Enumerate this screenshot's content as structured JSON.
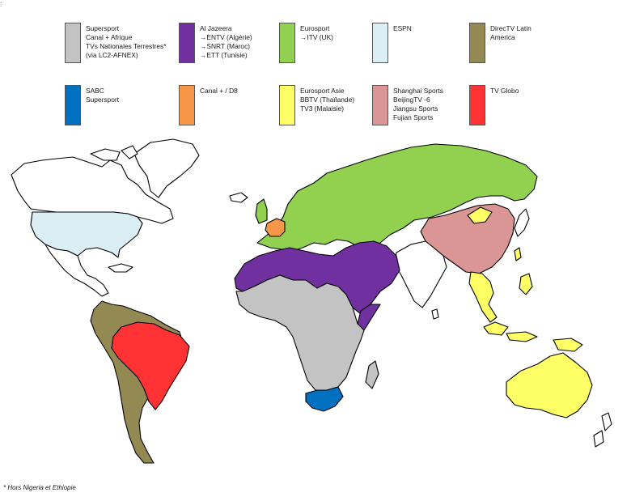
{
  "corner_mark": ":",
  "legend": [
    {
      "id": "supersport-africa",
      "color": "#c3c3c3",
      "lines": [
        "Supersport",
        "Canal + Afrique",
        "TVs Nationales Terrestres*",
        "(via LC2-AFNEX)"
      ]
    },
    {
      "id": "al-jazeera",
      "color": "#7030a0",
      "lines": [
        "Al Jazeera",
        "→ENTV (Algérie)",
        "→SNRT (Maroc)",
        "→ETT (Tunisie)"
      ]
    },
    {
      "id": "eurosport",
      "color": "#92d050",
      "lines": [
        "Eurosport",
        "→ITV (UK)"
      ]
    },
    {
      "id": "espn",
      "color": "#daeef3",
      "lines": [
        "ESPN"
      ]
    },
    {
      "id": "directv-latin",
      "color": "#938953",
      "lines": [
        "DirecTV Latin",
        "America"
      ]
    },
    {
      "id": "sabc",
      "color": "#0070c0",
      "lines": [
        "SABC",
        "Supersport"
      ]
    },
    {
      "id": "canal-d8",
      "color": "#f79646",
      "lines": [
        "Canal + / D8"
      ]
    },
    {
      "id": "eurosport-asie",
      "color": "#ffff66",
      "lines": [
        "Eurosport Asie",
        "BBTV (Thaïlande)",
        "TV3 (Malaisie)"
      ]
    },
    {
      "id": "chinese-sports",
      "color": "#d99694",
      "lines": [
        "Shanghai Sports",
        "BeijingTV -6",
        "Jiangsu Sports",
        "Fujian Sports"
      ]
    },
    {
      "id": "tv-globo",
      "color": "#ff3333",
      "lines": [
        "TV Globo"
      ]
    }
  ],
  "footnote": "* Hors  Nigeria et  Ethiopie",
  "map": {
    "icon": "world-map",
    "outline_color": "#000000",
    "unassigned_color": "#ffffff"
  }
}
